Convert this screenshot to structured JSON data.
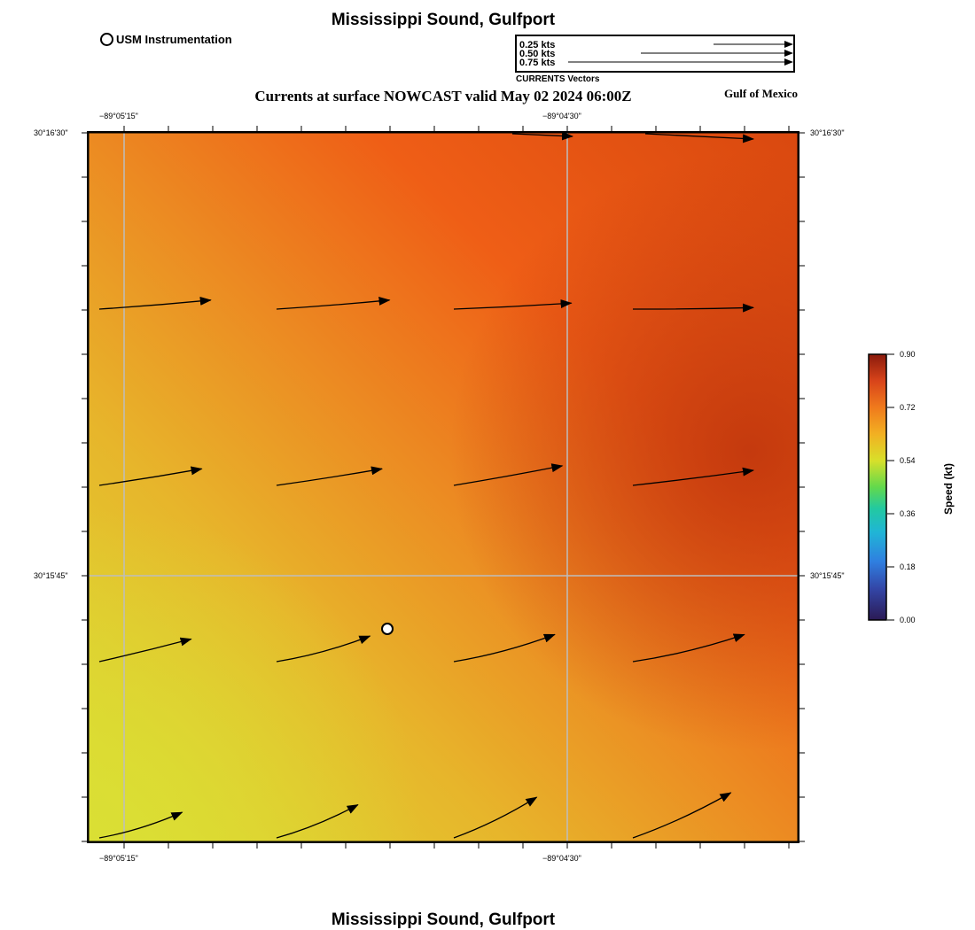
{
  "title_top": "Mississippi Sound, Gulfport",
  "title_bottom": "Mississippi Sound, Gulfport",
  "subtitle": "Currents at surface NOWCAST valid May 02 2024 06:00Z",
  "region_label": "Gulf of Mexico",
  "station_legend": {
    "label": "USM Instrumentation"
  },
  "vector_legend": {
    "entries": [
      {
        "label": "0.25 kts",
        "speed_kt": 0.25
      },
      {
        "label": "0.50 kts",
        "speed_kt": 0.5
      },
      {
        "label": "0.75 kts",
        "speed_kt": 0.75
      }
    ],
    "caption": "CURRENTS Vectors"
  },
  "axes": {
    "lon_labels": [
      "−89°05'15\"",
      "−89°04'30\""
    ],
    "lat_labels": [
      "30°16'30\"",
      "30°15'45\""
    ]
  },
  "colorbar": {
    "title": "Speed (kt)",
    "ticks": [
      "0.00",
      "0.18",
      "0.36",
      "0.54",
      "0.72",
      "0.90"
    ],
    "min": 0.0,
    "max": 0.9,
    "colors": {
      "0.00": "#2b1a55",
      "0.18": "#2f7fe0",
      "0.36": "#22c9a0",
      "0.54": "#d8e02a",
      "0.72": "#f07a1c",
      "0.90": "#8a1a0c"
    }
  },
  "colors": {
    "grid": "#bdbdbd",
    "vector": "#000000",
    "field_low": "#dce033",
    "field_mid": "#e9a22a",
    "field_high": "#ef5a14",
    "field_max": "#c2390e"
  },
  "current_vectors_kt": [
    {
      "row": 1,
      "col": 1,
      "u": 0.74,
      "v": 0.01
    },
    {
      "row": 1,
      "col": 2,
      "u": 0.78,
      "v": 0.01
    },
    {
      "row": 2,
      "col": 1,
      "u": 0.74,
      "v": 0.06
    },
    {
      "row": 2,
      "col": 2,
      "u": 0.75,
      "v": 0.06
    },
    {
      "row": 2,
      "col": 3,
      "u": 0.78,
      "v": 0.04
    },
    {
      "row": 2,
      "col": 4,
      "u": 0.8,
      "v": 0.01
    },
    {
      "row": 3,
      "col": 1,
      "u": 0.68,
      "v": 0.11
    },
    {
      "row": 3,
      "col": 2,
      "u": 0.7,
      "v": 0.11
    },
    {
      "row": 3,
      "col": 3,
      "u": 0.72,
      "v": 0.13
    },
    {
      "row": 3,
      "col": 4,
      "u": 0.8,
      "v": 0.1
    },
    {
      "row": 4,
      "col": 1,
      "u": 0.61,
      "v": 0.15
    },
    {
      "row": 4,
      "col": 2,
      "u": 0.62,
      "v": 0.17
    },
    {
      "row": 4,
      "col": 3,
      "u": 0.67,
      "v": 0.18
    },
    {
      "row": 4,
      "col": 4,
      "u": 0.74,
      "v": 0.18
    },
    {
      "row": 5,
      "col": 1,
      "u": 0.55,
      "v": 0.17
    },
    {
      "row": 5,
      "col": 2,
      "u": 0.54,
      "v": 0.22
    },
    {
      "row": 5,
      "col": 3,
      "u": 0.55,
      "v": 0.27
    },
    {
      "row": 5,
      "col": 4,
      "u": 0.65,
      "v": 0.3
    }
  ]
}
